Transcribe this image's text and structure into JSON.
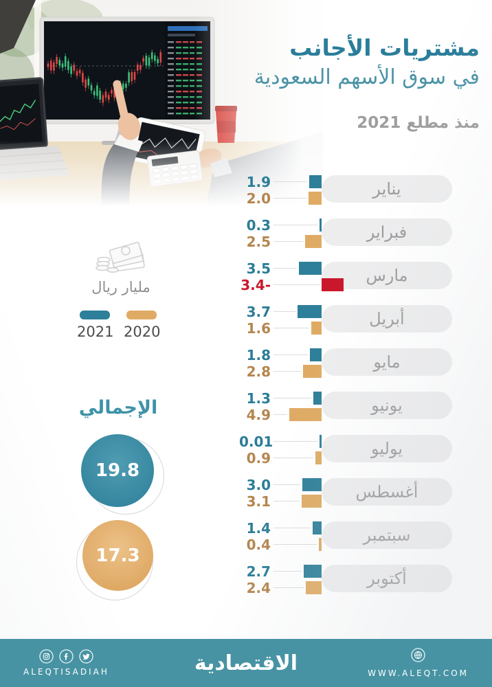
{
  "header": {
    "title_line1": "مشتريات الأجانب",
    "title_line2": "في سوق الأسهم السعودية",
    "subtitle": "منذ مطلع 2021"
  },
  "unit": {
    "label": "مليار ريال",
    "icon": "banknotes-coins-icon"
  },
  "legend": {
    "items": [
      {
        "label": "2021",
        "color": "#2e7f99"
      },
      {
        "label": "2020",
        "color": "#dfab64"
      }
    ]
  },
  "totals": {
    "heading": "الإجمالي",
    "items": [
      {
        "year": "2021",
        "value": "19.8",
        "color": "#35869f",
        "color_light": "#4f9cb2"
      },
      {
        "year": "2020",
        "value": "17.3",
        "color": "#dfa863",
        "color_light": "#ecc289"
      }
    ]
  },
  "chart_data": {
    "type": "bar",
    "orientation": "horizontal",
    "unit": "مليار ريال",
    "categories": [
      "يناير",
      "فبراير",
      "مارس",
      "أبريل",
      "مايو",
      "يونيو",
      "يوليو",
      "أغسطس",
      "سبتمبر",
      "أكتوبر"
    ],
    "series": [
      {
        "name": "2021",
        "color": "#2e7f99",
        "text_color": "#2b7d97",
        "values": [
          1.9,
          0.3,
          3.5,
          3.7,
          1.8,
          1.3,
          0.01,
          3.0,
          1.4,
          2.7
        ],
        "labels": [
          "1.9",
          "0.3",
          "3.5",
          "3.7",
          "1.8",
          "1.3",
          "0.01",
          "3.0",
          "1.4",
          "2.7"
        ]
      },
      {
        "name": "2020",
        "color": "#dfab64",
        "text_color": "#b5854e",
        "negative_color": "#c9182c",
        "negative_text_color": "#c9182c",
        "values": [
          2.0,
          2.5,
          -3.4,
          1.6,
          2.8,
          4.9,
          0.9,
          3.1,
          0.4,
          2.4
        ],
        "labels": [
          "2.0",
          "2.5",
          "3.4-",
          "1.6",
          "2.8",
          "4.9",
          "0.9",
          "3.1",
          "0.4",
          "2.4"
        ]
      }
    ],
    "totals": {
      "2021": 19.8,
      "2020": 17.3
    },
    "legend_position": "left",
    "grid": false
  },
  "footer": {
    "background": "#4793a3",
    "brand": "الاقتصادية",
    "handle": "ALEQTISADIAH",
    "website": "WWW.ALEQT.COM",
    "social_icons": [
      "instagram-icon",
      "facebook-icon",
      "twitter-icon"
    ],
    "site_icon": "globe-icon"
  }
}
